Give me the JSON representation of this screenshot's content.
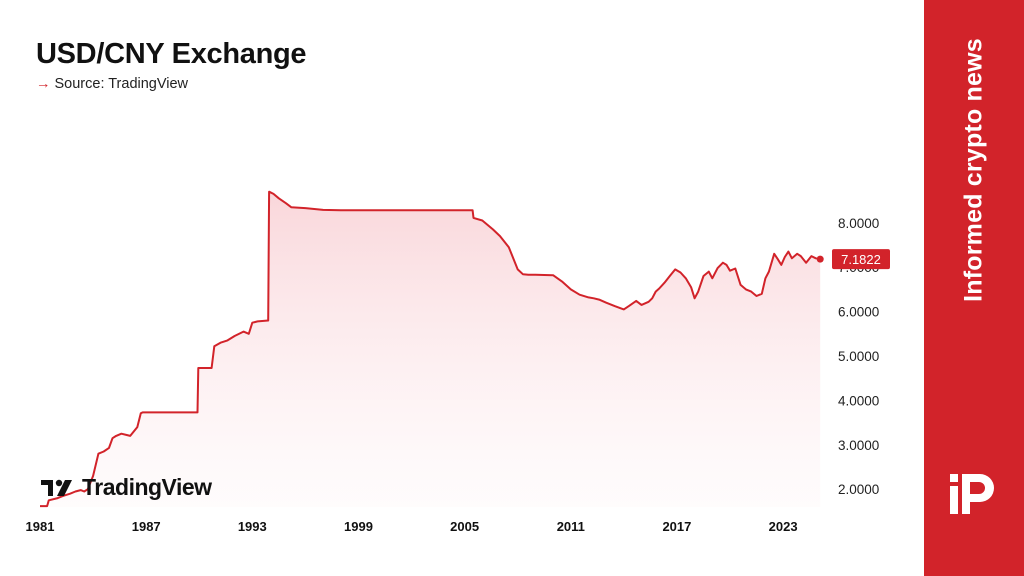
{
  "header": {
    "title": "USD/CNY Exchange",
    "source_label": "Source: TradingView",
    "arrow_icon": "arrow-right-icon"
  },
  "watermark": {
    "text": "TradingView",
    "icon": "tradingview-logo-icon"
  },
  "side_panel": {
    "text": "Informed crypto news",
    "icon": "brand-logo-icon",
    "color": "#d2232a"
  },
  "chart_data": {
    "type": "area",
    "title": "USD/CNY Exchange",
    "xlabel": "",
    "ylabel": "",
    "x_ticks": [
      "1981",
      "1987",
      "1993",
      "1999",
      "2005",
      "2011",
      "2017",
      "2023"
    ],
    "y_ticks": [
      "2.0000",
      "3.0000",
      "4.0000",
      "5.0000",
      "6.0000",
      "7.0000",
      "8.0000"
    ],
    "xlim": [
      1981,
      2025.2
    ],
    "ylim": [
      1.6,
      8.85
    ],
    "y_axis_position": "right",
    "grid": false,
    "last_value_label": "7.1822",
    "line_color": "#d2232a",
    "series": [
      {
        "x": [
          1981.0,
          1981.4,
          1981.5,
          1982.0,
          1982.3,
          1982.7,
          1983.0,
          1983.3,
          1983.5,
          1983.7,
          1984.0,
          1984.3,
          1984.6,
          1984.9,
          1985.1,
          1985.3,
          1985.6,
          1985.9,
          1986.1,
          1986.5,
          1986.7,
          1986.8,
          1987.3,
          1988.0,
          1989.0,
          1989.9,
          1989.95,
          1990.7,
          1990.85,
          1991.2,
          1991.6,
          1992.0,
          1992.5,
          1992.8,
          1993.0,
          1993.3,
          1993.9,
          1993.95,
          1994.2,
          1994.5,
          1994.9,
          1995.2,
          1996.0,
          1997.0,
          1998.0,
          1999.0,
          2000.0,
          2001.0,
          2002.0,
          2003.0,
          2004.0,
          2005.45,
          2005.5,
          2006.0,
          2006.6,
          2007.0,
          2007.5,
          2008.0,
          2008.3,
          2008.6,
          2009.0,
          2010.0,
          2010.5,
          2011.0,
          2011.5,
          2012.0,
          2012.3,
          2012.6,
          2013.0,
          2013.5,
          2014.0,
          2014.3,
          2014.7,
          2015.0,
          2015.4,
          2015.6,
          2015.8,
          2016.0,
          2016.3,
          2016.6,
          2016.9,
          2017.2,
          2017.5,
          2017.8,
          2018.0,
          2018.2,
          2018.5,
          2018.8,
          2019.0,
          2019.3,
          2019.6,
          2019.8,
          2020.0,
          2020.3,
          2020.6,
          2020.9,
          2021.2,
          2021.5,
          2021.8,
          2022.0,
          2022.2,
          2022.5,
          2022.7,
          2022.9,
          2023.1,
          2023.3,
          2023.5,
          2023.8,
          2024.0,
          2024.3,
          2024.6,
          2024.85,
          2025.1
        ],
        "y": [
          1.62,
          1.62,
          1.75,
          1.8,
          1.85,
          1.9,
          1.95,
          1.98,
          1.95,
          2.0,
          2.3,
          2.8,
          2.85,
          2.93,
          3.15,
          3.2,
          3.25,
          3.22,
          3.2,
          3.4,
          3.71,
          3.73,
          3.73,
          3.73,
          3.73,
          3.73,
          4.73,
          4.73,
          5.22,
          5.3,
          5.35,
          5.45,
          5.55,
          5.5,
          5.75,
          5.78,
          5.8,
          8.7,
          8.65,
          8.55,
          8.44,
          8.35,
          8.33,
          8.29,
          8.28,
          8.28,
          8.28,
          8.28,
          8.28,
          8.28,
          8.28,
          8.28,
          8.11,
          8.05,
          7.85,
          7.7,
          7.45,
          6.95,
          6.84,
          6.83,
          6.83,
          6.82,
          6.68,
          6.5,
          6.38,
          6.32,
          6.3,
          6.27,
          6.2,
          6.12,
          6.05,
          6.13,
          6.24,
          6.15,
          6.22,
          6.3,
          6.45,
          6.52,
          6.65,
          6.8,
          6.95,
          6.88,
          6.75,
          6.55,
          6.3,
          6.45,
          6.8,
          6.9,
          6.75,
          6.98,
          7.1,
          7.05,
          6.92,
          6.97,
          6.6,
          6.5,
          6.45,
          6.35,
          6.4,
          6.75,
          6.9,
          7.3,
          7.18,
          7.05,
          7.23,
          7.35,
          7.2,
          7.3,
          7.25,
          7.1,
          7.25,
          7.2,
          7.1822
        ]
      }
    ]
  }
}
